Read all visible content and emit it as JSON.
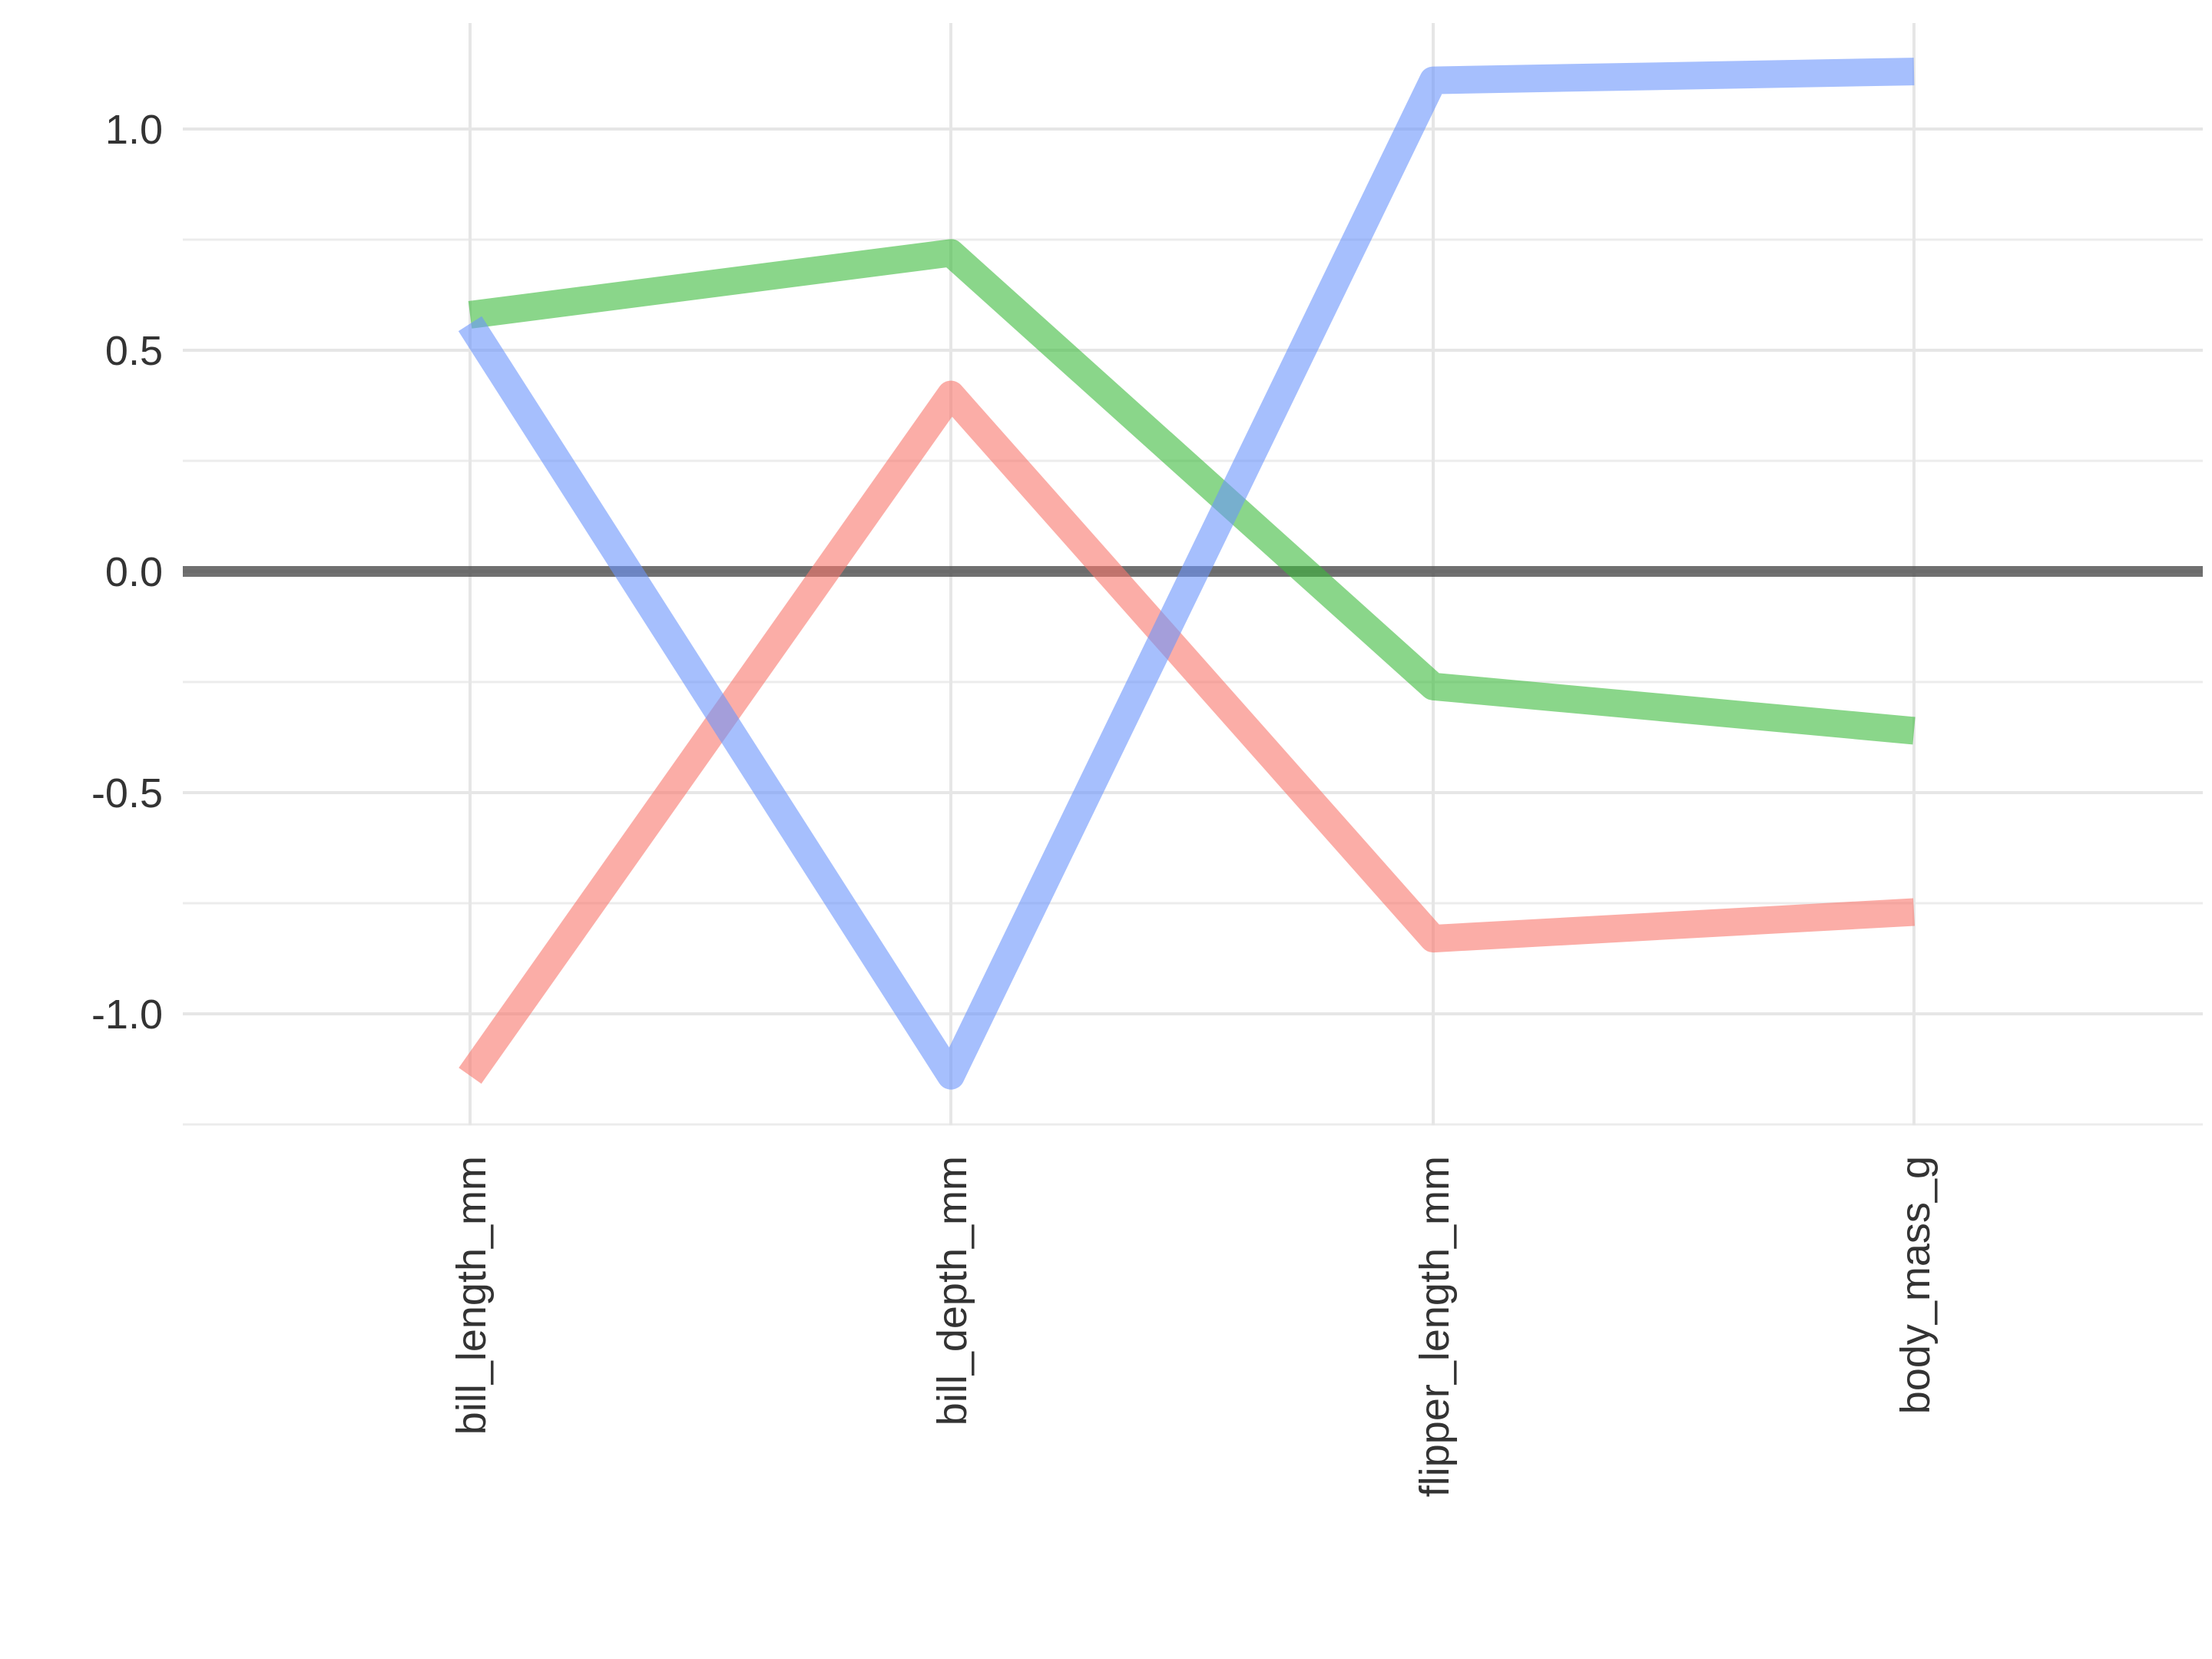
{
  "chart_data": {
    "type": "line",
    "categories": [
      "bill_length_mm",
      "bill_depth_mm",
      "flipper_length_mm",
      "body_mass_g"
    ],
    "series": [
      {
        "color": "#f8766d",
        "values": [
          -1.14,
          0.4,
          -0.83,
          -0.77
        ]
      },
      {
        "color": "#7cae00",
        "values": [
          0.58,
          0.72,
          -0.26,
          -0.36
        ]
      },
      {
        "color": "#619cff",
        "values": [
          0.56,
          -1.14,
          1.11,
          1.13
        ]
      }
    ],
    "series_colors_display": [
      "#f8766d",
      "#3cbb3c",
      "#6b95fb"
    ],
    "reference_line": {
      "y": 0,
      "color": "#4d4d4d"
    },
    "ylim": [
      -1.25,
      1.25
    ],
    "yticks": [
      -1.0,
      -0.5,
      0.0,
      0.5,
      1.0
    ],
    "ytick_labels": [
      "-1.0",
      "-0.5",
      "0.0",
      "0.5",
      "1.0"
    ],
    "grid": true,
    "legend": "none",
    "title": "",
    "xlabel": "",
    "ylabel": ""
  }
}
